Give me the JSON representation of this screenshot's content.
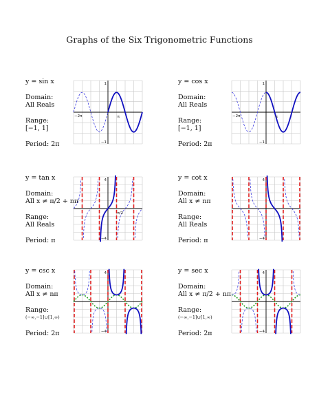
{
  "page": {
    "title": "Graphs of the Six Trigonometric Functions"
  },
  "blocks": [
    {
      "func": "y = sin x",
      "domain_label": "Domain:",
      "domain": "All Reals",
      "range_label": "Range:",
      "range": "[−1, 1]",
      "period": "Period: 2π",
      "graph_func": "sin",
      "ticks": {
        "top": "1",
        "bottom": "−1",
        "left": "−2π",
        "mid": "π"
      }
    },
    {
      "func": "y = cos x",
      "domain_label": "Domain:",
      "domain": "All Reals",
      "range_label": "Range:",
      "range": "[−1, 1]",
      "period": "Period: 2π",
      "graph_func": "cos",
      "ticks": {
        "top": "1",
        "bottom": "−1",
        "left": "−2π",
        "mid": "π"
      }
    },
    {
      "func": "y = tan x",
      "domain_label": "Domain:",
      "domain": "All x ≠ π/2 + nπ",
      "range_label": "Range:",
      "range": "All Reals",
      "period": "Period: π",
      "graph_func": "tan",
      "ticks": {
        "top": "4",
        "bottom": "−4",
        "left": "",
        "mid": "π/2"
      }
    },
    {
      "func": "y = cot x",
      "domain_label": "Domain:",
      "domain": "All x ≠ nπ",
      "range_label": "Range:",
      "range": "All Reals",
      "period": "Period: π",
      "graph_func": "cot",
      "ticks": {
        "top": "4",
        "bottom": "−4",
        "left": "",
        "mid": ""
      }
    },
    {
      "func": "y = csc x",
      "domain_label": "Domain:",
      "domain": "All x ≠ nπ",
      "range_label": "Range:",
      "range": "(−∞,−1]∪[1,∞)",
      "period": "Period: 2π",
      "graph_func": "csc",
      "ticks": {
        "top": "4",
        "bottom": "−4",
        "left": "",
        "mid": ""
      }
    },
    {
      "func": "y = sec x",
      "domain_label": "Domain:",
      "domain": "All x ≠ π/2 + nπ",
      "range_label": "Range:",
      "range": "(−∞,−1]∪[1,∞)",
      "period": "Period: 2π",
      "graph_func": "sec",
      "ticks": {
        "top": "4",
        "bottom": "−4",
        "left": "",
        "mid": ""
      }
    }
  ],
  "colors": {
    "curve_main": "#1010c0",
    "curve_faint": "#3a3ae0",
    "asymptote": "#e02020",
    "sine_guide": "#20a020",
    "grid": "#c8c8c8",
    "axis": "#000000"
  }
}
